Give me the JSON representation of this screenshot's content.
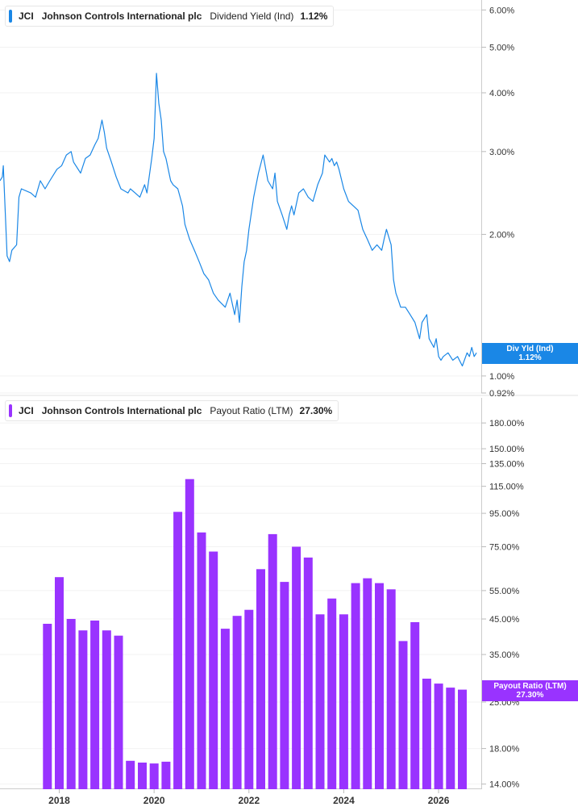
{
  "panel_top": {
    "ticker": "JCI",
    "company": "Johnson Controls International plc",
    "metric": "Dividend Yield (Ind)",
    "value": "1.12%",
    "tag_label": "Div Yld (Ind)",
    "tag_value": "1.12%",
    "color": "#1a87e6"
  },
  "panel_bottom": {
    "ticker": "JCI",
    "company": "Johnson Controls International plc",
    "metric": "Payout Ratio (LTM)",
    "value": "27.30%",
    "tag_label": "Payout Ratio (LTM)",
    "tag_value": "27.30%",
    "color": "#9933ff"
  },
  "chart_data": [
    {
      "type": "line",
      "scale": "log",
      "x_range": [
        2016.75,
        2026.9
      ],
      "ylim": [
        0.92,
        6.3
      ],
      "y_ticks": [
        6.0,
        5.0,
        4.0,
        3.0,
        2.0,
        1.0,
        0.92
      ],
      "y_tick_labels": [
        "6.00%",
        "5.00%",
        "4.00%",
        "3.00%",
        "2.00%",
        "1.00%",
        "0.92%"
      ],
      "series": [
        {
          "name": "Dividend Yield (Ind)",
          "x": [
            2016.75,
            2016.8,
            2016.82,
            2016.9,
            2016.95,
            2017.0,
            2017.1,
            2017.15,
            2017.2,
            2017.4,
            2017.5,
            2017.6,
            2017.7,
            2017.8,
            2017.95,
            2018.05,
            2018.15,
            2018.25,
            2018.3,
            2018.45,
            2018.55,
            2018.65,
            2018.75,
            2018.82,
            2018.9,
            2018.95,
            2019.0,
            2019.1,
            2019.2,
            2019.3,
            2019.45,
            2019.5,
            2019.6,
            2019.7,
            2019.8,
            2019.85,
            2019.95,
            2020.0,
            2020.05,
            2020.1,
            2020.15,
            2020.2,
            2020.25,
            2020.35,
            2020.4,
            2020.5,
            2020.6,
            2020.65,
            2020.75,
            2020.85,
            2020.95,
            2021.05,
            2021.15,
            2021.25,
            2021.35,
            2021.5,
            2021.6,
            2021.7,
            2021.75,
            2021.8,
            2021.85,
            2021.9,
            2021.95,
            2022.0,
            2022.1,
            2022.2,
            2022.3,
            2022.4,
            2022.5,
            2022.55,
            2022.6,
            2022.7,
            2022.8,
            2022.85,
            2022.9,
            2022.95,
            2023.05,
            2023.15,
            2023.25,
            2023.35,
            2023.45,
            2023.55,
            2023.6,
            2023.7,
            2023.75,
            2023.8,
            2023.85,
            2023.9,
            2024.0,
            2024.1,
            2024.2,
            2024.3,
            2024.4,
            2024.5,
            2024.6,
            2024.7,
            2024.8,
            2024.85,
            2024.9,
            2025.0,
            2025.05,
            2025.1,
            2025.15,
            2025.2,
            2025.3,
            2025.4,
            2025.5,
            2025.6,
            2025.65,
            2025.75,
            2025.8,
            2025.9,
            2025.95,
            2026.0,
            2026.05,
            2026.1,
            2026.2,
            2026.3,
            2026.4,
            2026.5,
            2026.6,
            2026.65,
            2026.7,
            2026.75,
            2026.8
          ],
          "values": [
            2.6,
            2.65,
            2.8,
            1.8,
            1.75,
            1.85,
            1.9,
            2.4,
            2.5,
            2.45,
            2.4,
            2.6,
            2.5,
            2.6,
            2.75,
            2.8,
            2.95,
            3.0,
            2.85,
            2.7,
            2.9,
            2.95,
            3.1,
            3.2,
            3.5,
            3.3,
            3.05,
            2.85,
            2.65,
            2.5,
            2.45,
            2.5,
            2.45,
            2.4,
            2.55,
            2.45,
            2.9,
            3.2,
            4.4,
            3.8,
            3.5,
            3.0,
            2.9,
            2.6,
            2.55,
            2.5,
            2.3,
            2.1,
            1.95,
            1.85,
            1.75,
            1.65,
            1.6,
            1.5,
            1.45,
            1.4,
            1.5,
            1.35,
            1.45,
            1.3,
            1.55,
            1.75,
            1.85,
            2.05,
            2.4,
            2.7,
            2.95,
            2.6,
            2.5,
            2.7,
            2.35,
            2.2,
            2.05,
            2.2,
            2.3,
            2.2,
            2.45,
            2.5,
            2.4,
            2.35,
            2.55,
            2.7,
            2.95,
            2.85,
            2.9,
            2.8,
            2.85,
            2.75,
            2.5,
            2.35,
            2.3,
            2.25,
            2.05,
            1.95,
            1.85,
            1.9,
            1.85,
            1.95,
            2.05,
            1.9,
            1.6,
            1.5,
            1.45,
            1.4,
            1.4,
            1.35,
            1.3,
            1.2,
            1.3,
            1.35,
            1.2,
            1.15,
            1.2,
            1.1,
            1.08,
            1.1,
            1.12,
            1.08,
            1.1,
            1.05,
            1.12,
            1.1,
            1.15,
            1.1,
            1.12
          ]
        }
      ]
    },
    {
      "type": "bar",
      "scale": "log",
      "x_range": [
        2016.75,
        2026.9
      ],
      "ylim": [
        13.5,
        215
      ],
      "y_ticks": [
        180,
        150,
        135,
        115,
        95,
        75,
        55,
        45,
        35,
        25,
        18,
        14
      ],
      "y_tick_labels": [
        "180.00%",
        "150.00%",
        "135.00%",
        "115.00%",
        "95.00%",
        "75.00%",
        "55.00%",
        "45.00%",
        "35.00%",
        "25.00%",
        "18.00%",
        "14.00%"
      ],
      "x_ticks": [
        2018,
        2020,
        2022,
        2024,
        2026
      ],
      "x_tick_labels": [
        "2018",
        "2020",
        "2022",
        "2024",
        "2026"
      ],
      "series": [
        {
          "name": "Payout Ratio (LTM)",
          "x": [
            2017.75,
            2018.0,
            2018.25,
            2018.5,
            2018.75,
            2019.0,
            2019.25,
            2019.5,
            2019.75,
            2020.0,
            2020.25,
            2020.5,
            2020.75,
            2021.0,
            2021.25,
            2021.5,
            2021.75,
            2022.0,
            2022.25,
            2022.5,
            2022.75,
            2023.0,
            2023.25,
            2023.5,
            2023.75,
            2024.0,
            2024.25,
            2024.5,
            2024.75,
            2025.0,
            2025.25,
            2025.5,
            2025.75,
            2026.0,
            2026.25,
            2026.5
          ],
          "values": [
            43.5,
            60.5,
            45,
            41.5,
            44.5,
            41.5,
            40,
            16.5,
            16.3,
            16.2,
            16.4,
            96,
            121,
            83,
            72.5,
            42,
            46,
            48,
            64,
            82,
            58.5,
            75,
            69.5,
            46.5,
            52,
            46.5,
            58,
            60,
            58,
            55.5,
            38.5,
            44,
            29.5,
            28.5,
            27.7,
            27.3
          ]
        }
      ]
    }
  ]
}
